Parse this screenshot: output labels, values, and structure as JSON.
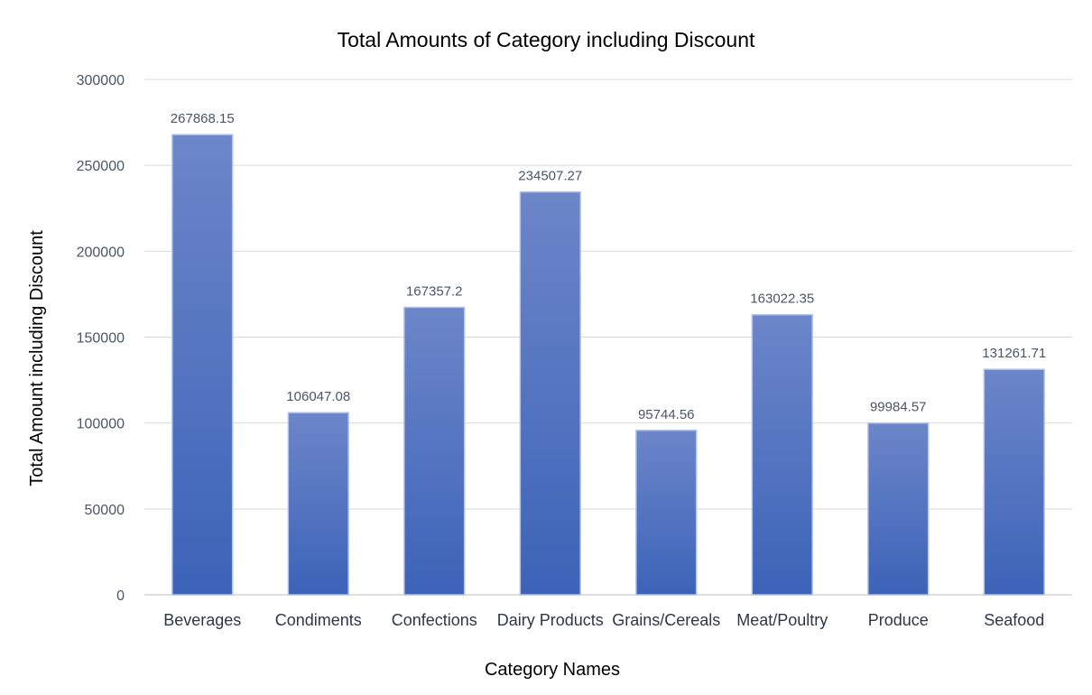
{
  "chart_data": {
    "type": "bar",
    "title": "Total Amounts of Category including Discount",
    "xlabel": "Category Names",
    "ylabel": "Total Amount including Discount",
    "categories": [
      "Beverages",
      "Condiments",
      "Confections",
      "Dairy Products",
      "Grains/Cereals",
      "Meat/Poultry",
      "Produce",
      "Seafood"
    ],
    "values": [
      267868.15,
      106047.08,
      167357.2,
      234507.27,
      95744.56,
      163022.35,
      99984.57,
      131261.71
    ],
    "value_labels": [
      "267868.15",
      "106047.08",
      "167357.2",
      "234507.27",
      "95744.56",
      "163022.35",
      "99984.57",
      "131261.71"
    ],
    "ylim": [
      0,
      300000
    ],
    "yticks": [
      0,
      50000,
      100000,
      150000,
      200000,
      250000,
      300000
    ],
    "ytick_labels": [
      "0",
      "50000",
      "100000",
      "150000",
      "200000",
      "250000",
      "300000"
    ],
    "grid": true,
    "legend": "none",
    "colors": {
      "bar_top": "#6c86c9",
      "bar_bottom": "#3c63b8",
      "bar_border": "#b4c3e6"
    }
  }
}
